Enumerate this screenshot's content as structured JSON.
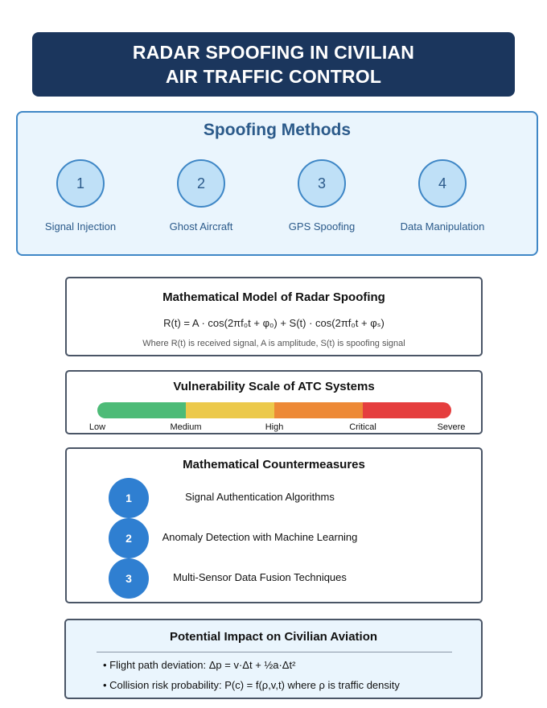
{
  "header": {
    "title_line1": "RADAR SPOOFING IN CIVILIAN",
    "title_line2": "AIR TRAFFIC CONTROL"
  },
  "methods": {
    "title": "Spoofing Methods",
    "items": [
      {
        "number": "1",
        "label": "Signal Injection"
      },
      {
        "number": "2",
        "label": "Ghost Aircraft"
      },
      {
        "number": "3",
        "label": "GPS Spoofing"
      },
      {
        "number": "4",
        "label": "Data Manipulation"
      }
    ]
  },
  "model": {
    "title": "Mathematical Model of Radar Spoofing",
    "equation": "R(t) = A · cos(2πf₀t + φ₀) + S(t) · cos(2πf₀t + φₛ)",
    "note": "Where R(t) is received signal, A is amplitude, S(t) is spoofing signal"
  },
  "vulnerability": {
    "title": "Vulnerability Scale of ATC Systems",
    "segment_colors": [
      "#4dbb77",
      "#ecc94b",
      "#ed8936",
      "#e53e3e"
    ],
    "labels": [
      "Low",
      "Medium",
      "High",
      "Critical",
      "Severe"
    ]
  },
  "countermeasures": {
    "title": "Mathematical Countermeasures",
    "items": [
      {
        "number": "1",
        "label": "Signal Authentication Algorithms"
      },
      {
        "number": "2",
        "label": "Anomaly Detection with Machine Learning"
      },
      {
        "number": "3",
        "label": "Multi-Sensor Data Fusion Techniques"
      }
    ]
  },
  "impact": {
    "title": "Potential Impact on Civilian Aviation",
    "items": [
      "• Flight path deviation: Δp = v·Δt + ½a·Δt²",
      "• Collision risk probability: P(c) = f(ρ,v,t) where ρ is traffic density"
    ]
  }
}
